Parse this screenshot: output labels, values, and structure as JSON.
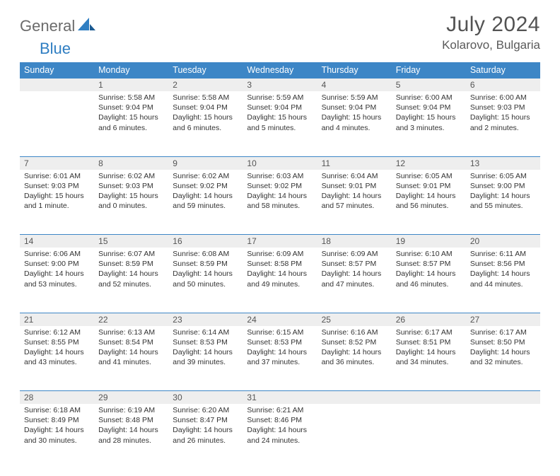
{
  "brand": {
    "part1": "General",
    "part2": "Blue"
  },
  "title": "July 2024",
  "location": "Kolarovo, Bulgaria",
  "header_color": "#3d86c6",
  "divider_color": "#3d86c6",
  "daynum_bg": "#eeeeee",
  "weekdays": [
    "Sunday",
    "Monday",
    "Tuesday",
    "Wednesday",
    "Thursday",
    "Friday",
    "Saturday"
  ],
  "weeks": [
    [
      null,
      {
        "n": "1",
        "sr": "5:58 AM",
        "ss": "9:04 PM",
        "dl": "15 hours and 6 minutes."
      },
      {
        "n": "2",
        "sr": "5:58 AM",
        "ss": "9:04 PM",
        "dl": "15 hours and 6 minutes."
      },
      {
        "n": "3",
        "sr": "5:59 AM",
        "ss": "9:04 PM",
        "dl": "15 hours and 5 minutes."
      },
      {
        "n": "4",
        "sr": "5:59 AM",
        "ss": "9:04 PM",
        "dl": "15 hours and 4 minutes."
      },
      {
        "n": "5",
        "sr": "6:00 AM",
        "ss": "9:04 PM",
        "dl": "15 hours and 3 minutes."
      },
      {
        "n": "6",
        "sr": "6:00 AM",
        "ss": "9:03 PM",
        "dl": "15 hours and 2 minutes."
      }
    ],
    [
      {
        "n": "7",
        "sr": "6:01 AM",
        "ss": "9:03 PM",
        "dl": "15 hours and 1 minute."
      },
      {
        "n": "8",
        "sr": "6:02 AM",
        "ss": "9:03 PM",
        "dl": "15 hours and 0 minutes."
      },
      {
        "n": "9",
        "sr": "6:02 AM",
        "ss": "9:02 PM",
        "dl": "14 hours and 59 minutes."
      },
      {
        "n": "10",
        "sr": "6:03 AM",
        "ss": "9:02 PM",
        "dl": "14 hours and 58 minutes."
      },
      {
        "n": "11",
        "sr": "6:04 AM",
        "ss": "9:01 PM",
        "dl": "14 hours and 57 minutes."
      },
      {
        "n": "12",
        "sr": "6:05 AM",
        "ss": "9:01 PM",
        "dl": "14 hours and 56 minutes."
      },
      {
        "n": "13",
        "sr": "6:05 AM",
        "ss": "9:00 PM",
        "dl": "14 hours and 55 minutes."
      }
    ],
    [
      {
        "n": "14",
        "sr": "6:06 AM",
        "ss": "9:00 PM",
        "dl": "14 hours and 53 minutes."
      },
      {
        "n": "15",
        "sr": "6:07 AM",
        "ss": "8:59 PM",
        "dl": "14 hours and 52 minutes."
      },
      {
        "n": "16",
        "sr": "6:08 AM",
        "ss": "8:59 PM",
        "dl": "14 hours and 50 minutes."
      },
      {
        "n": "17",
        "sr": "6:09 AM",
        "ss": "8:58 PM",
        "dl": "14 hours and 49 minutes."
      },
      {
        "n": "18",
        "sr": "6:09 AM",
        "ss": "8:57 PM",
        "dl": "14 hours and 47 minutes."
      },
      {
        "n": "19",
        "sr": "6:10 AM",
        "ss": "8:57 PM",
        "dl": "14 hours and 46 minutes."
      },
      {
        "n": "20",
        "sr": "6:11 AM",
        "ss": "8:56 PM",
        "dl": "14 hours and 44 minutes."
      }
    ],
    [
      {
        "n": "21",
        "sr": "6:12 AM",
        "ss": "8:55 PM",
        "dl": "14 hours and 43 minutes."
      },
      {
        "n": "22",
        "sr": "6:13 AM",
        "ss": "8:54 PM",
        "dl": "14 hours and 41 minutes."
      },
      {
        "n": "23",
        "sr": "6:14 AM",
        "ss": "8:53 PM",
        "dl": "14 hours and 39 minutes."
      },
      {
        "n": "24",
        "sr": "6:15 AM",
        "ss": "8:53 PM",
        "dl": "14 hours and 37 minutes."
      },
      {
        "n": "25",
        "sr": "6:16 AM",
        "ss": "8:52 PM",
        "dl": "14 hours and 36 minutes."
      },
      {
        "n": "26",
        "sr": "6:17 AM",
        "ss": "8:51 PM",
        "dl": "14 hours and 34 minutes."
      },
      {
        "n": "27",
        "sr": "6:17 AM",
        "ss": "8:50 PM",
        "dl": "14 hours and 32 minutes."
      }
    ],
    [
      {
        "n": "28",
        "sr": "6:18 AM",
        "ss": "8:49 PM",
        "dl": "14 hours and 30 minutes."
      },
      {
        "n": "29",
        "sr": "6:19 AM",
        "ss": "8:48 PM",
        "dl": "14 hours and 28 minutes."
      },
      {
        "n": "30",
        "sr": "6:20 AM",
        "ss": "8:47 PM",
        "dl": "14 hours and 26 minutes."
      },
      {
        "n": "31",
        "sr": "6:21 AM",
        "ss": "8:46 PM",
        "dl": "14 hours and 24 minutes."
      },
      null,
      null,
      null
    ]
  ],
  "labels": {
    "sunrise": "Sunrise:",
    "sunset": "Sunset:",
    "daylight": "Daylight:"
  }
}
